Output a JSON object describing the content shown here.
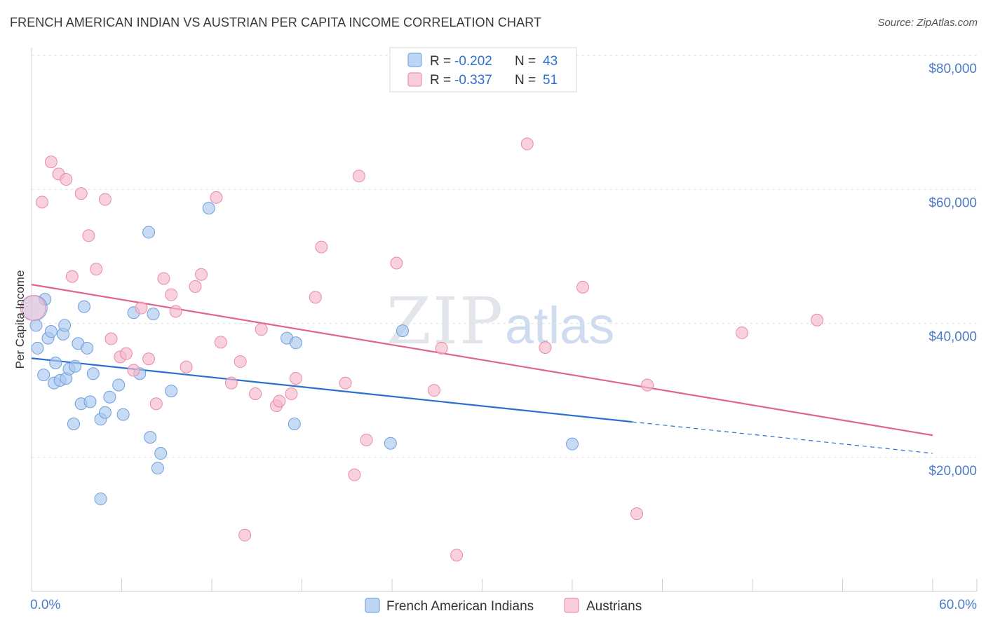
{
  "header": {
    "title": "FRENCH AMERICAN INDIAN VS AUSTRIAN PER CAPITA INCOME CORRELATION CHART",
    "source": "Source: ZipAtlas.com"
  },
  "watermark": {
    "zip": "ZIP",
    "atlas": "atlas"
  },
  "legend": {
    "rows": [
      {
        "r_label": "R =",
        "r_value": "-0.202",
        "n_label": "N =",
        "n_value": "43",
        "color": "#a9c8f0"
      },
      {
        "r_label": "R =",
        "r_value": "-0.337",
        "n_label": "N =",
        "n_value": "51",
        "color": "#f6b8cb"
      }
    ]
  },
  "chart_data": {
    "type": "scatter",
    "title": "FRENCH AMERICAN INDIAN VS AUSTRIAN PER CAPITA INCOME CORRELATION CHART",
    "xlabel": "",
    "ylabel": "Per Capita Income",
    "xlim": [
      0,
      60
    ],
    "ylim": [
      0,
      82000
    ],
    "x_tick_labels": [
      "0.0%",
      "60.0%"
    ],
    "y_ticks": [
      20000,
      40000,
      60000,
      80000
    ],
    "y_tick_labels": [
      "$20,000",
      "$40,000",
      "$60,000",
      "$80,000"
    ],
    "grid": true,
    "legend_position": "top-center",
    "series": [
      {
        "name": "French American Indians",
        "color": "#a9c8f0",
        "stroke": "#6f9fdc",
        "trend": {
          "x0": 0,
          "y0": 34800,
          "x1": 40,
          "y1": 25300,
          "dash_to_x": 60,
          "dash_to_y": 20600,
          "color": "#2a6fd0"
        },
        "points": [
          [
            0.3,
            39700
          ],
          [
            0.4,
            36300
          ],
          [
            0.9,
            43600
          ],
          [
            0.8,
            32300
          ],
          [
            1.1,
            37800
          ],
          [
            1.3,
            38800
          ],
          [
            1.5,
            31100
          ],
          [
            1.6,
            34100
          ],
          [
            1.9,
            31500
          ],
          [
            2.1,
            38400
          ],
          [
            2.2,
            39700
          ],
          [
            2.3,
            31800
          ],
          [
            2.5,
            33200
          ],
          [
            2.8,
            25000
          ],
          [
            2.9,
            33600
          ],
          [
            3.1,
            37000
          ],
          [
            3.3,
            28000
          ],
          [
            3.5,
            42500
          ],
          [
            3.7,
            36300
          ],
          [
            3.9,
            28300
          ],
          [
            4.1,
            32500
          ],
          [
            4.6,
            13800
          ],
          [
            4.6,
            25700
          ],
          [
            4.9,
            26700
          ],
          [
            5.2,
            29000
          ],
          [
            5.8,
            30800
          ],
          [
            6.1,
            26400
          ],
          [
            6.8,
            41600
          ],
          [
            7.2,
            32500
          ],
          [
            7.8,
            53600
          ],
          [
            7.9,
            23000
          ],
          [
            8.1,
            41400
          ],
          [
            8.4,
            18400
          ],
          [
            8.6,
            20600
          ],
          [
            9.3,
            29900
          ],
          [
            11.8,
            57200
          ],
          [
            17.0,
            37800
          ],
          [
            17.5,
            25000
          ],
          [
            17.6,
            37100
          ],
          [
            23.9,
            22100
          ],
          [
            24.7,
            38900
          ],
          [
            36.0,
            22000
          ],
          [
            0.2,
            42300
          ]
        ]
      },
      {
        "name": "Austrians",
        "color": "#f6b8cb",
        "stroke": "#e98aa8",
        "trend": {
          "x0": 0,
          "y0": 45800,
          "x1": 60,
          "y1": 23300,
          "color": "#e0648e"
        },
        "points": [
          [
            0.7,
            58100
          ],
          [
            1.3,
            64100
          ],
          [
            1.8,
            62300
          ],
          [
            2.3,
            61500
          ],
          [
            2.7,
            47000
          ],
          [
            3.3,
            59400
          ],
          [
            3.8,
            53100
          ],
          [
            4.3,
            48100
          ],
          [
            4.9,
            58500
          ],
          [
            5.3,
            37700
          ],
          [
            5.9,
            35000
          ],
          [
            6.3,
            35500
          ],
          [
            6.8,
            33000
          ],
          [
            7.3,
            42300
          ],
          [
            7.8,
            34700
          ],
          [
            8.3,
            28000
          ],
          [
            8.8,
            46700
          ],
          [
            9.3,
            44300
          ],
          [
            9.6,
            41800
          ],
          [
            10.3,
            33500
          ],
          [
            10.9,
            45500
          ],
          [
            11.3,
            47300
          ],
          [
            12.3,
            58800
          ],
          [
            12.6,
            37200
          ],
          [
            13.3,
            31100
          ],
          [
            13.9,
            34300
          ],
          [
            14.2,
            8400
          ],
          [
            14.9,
            29500
          ],
          [
            15.3,
            39100
          ],
          [
            16.3,
            27700
          ],
          [
            16.5,
            28400
          ],
          [
            17.3,
            29500
          ],
          [
            17.6,
            31800
          ],
          [
            18.9,
            43900
          ],
          [
            19.3,
            51400
          ],
          [
            20.9,
            31100
          ],
          [
            21.5,
            17400
          ],
          [
            21.8,
            62000
          ],
          [
            22.3,
            22600
          ],
          [
            24.3,
            49000
          ],
          [
            26.8,
            30000
          ],
          [
            27.3,
            36300
          ],
          [
            28.3,
            5400
          ],
          [
            33.0,
            66800
          ],
          [
            34.2,
            36400
          ],
          [
            36.7,
            45400
          ],
          [
            40.3,
            11600
          ],
          [
            41.0,
            30800
          ],
          [
            47.3,
            38600
          ],
          [
            52.3,
            40500
          ],
          [
            0.1,
            42300
          ]
        ]
      }
    ]
  }
}
